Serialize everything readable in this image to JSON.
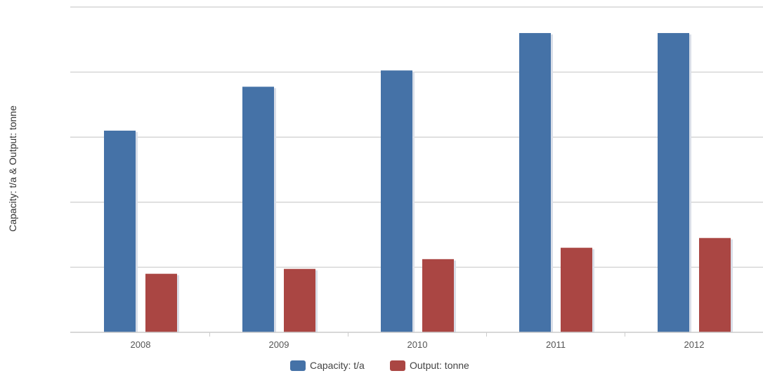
{
  "chart_data": {
    "type": "bar",
    "title": "",
    "xlabel": "",
    "ylabel": "Capacity: t/a & Output: tonne",
    "categories": [
      "2008",
      "2009",
      "2010",
      "2011",
      "2012"
    ],
    "series": [
      {
        "name": "Capacity: t/a",
        "color": "#4572a7",
        "values": [
          62,
          75.5,
          80.5,
          92,
          92
        ]
      },
      {
        "name": "Output: tonne",
        "color": "#aa4643",
        "values": [
          18,
          19.5,
          22.5,
          26,
          29
        ]
      }
    ],
    "ylim": [
      0,
      100
    ],
    "grid": true,
    "legend": "bottom-center"
  }
}
